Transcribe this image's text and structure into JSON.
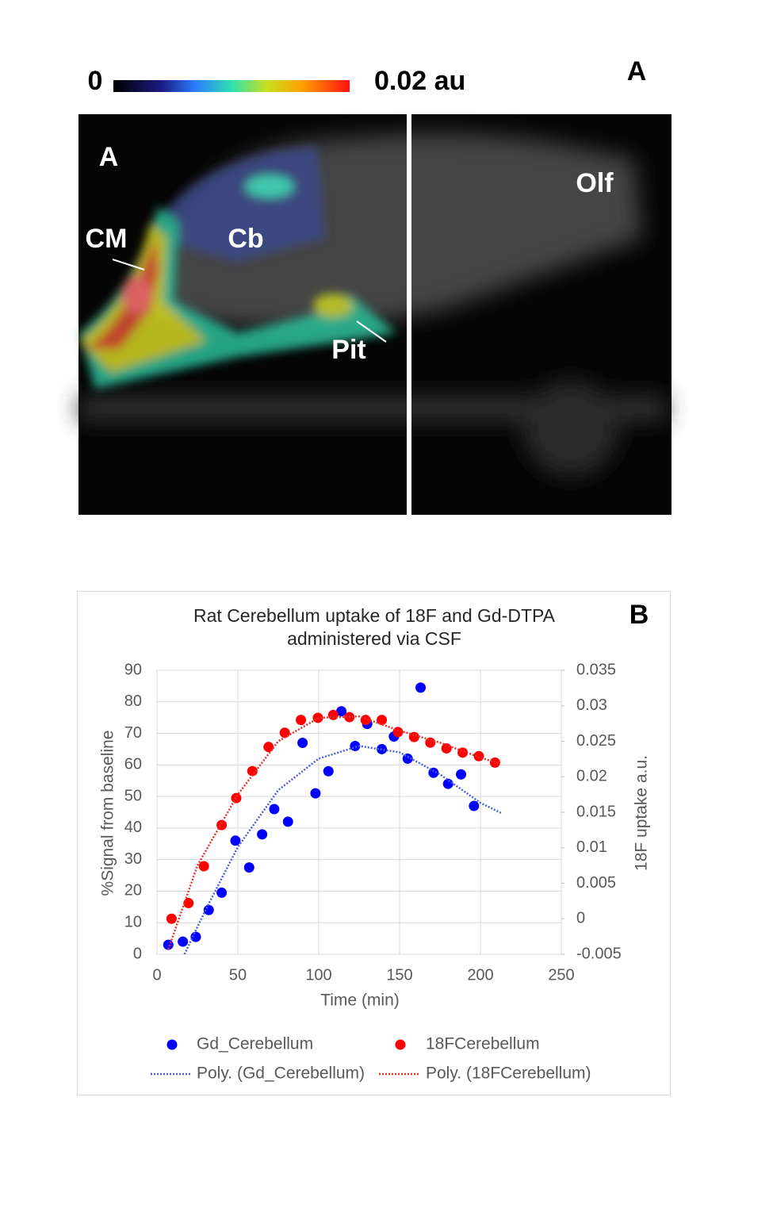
{
  "panel_a": {
    "label": "A",
    "colorbar": {
      "min_label": "0",
      "max_label": "0.02 au"
    },
    "image_labels": [
      "A",
      "CM",
      "Cb",
      "Pit",
      "Olf"
    ]
  },
  "chart_data": {
    "type": "scatter",
    "panel_label": "B",
    "title": "Rat Cerebellum uptake of 18F and Gd-DTPA administered via CSF",
    "x_label": "Time (min)",
    "y_label": "%Signal from baseline",
    "y2_label": "18F uptake a.u.",
    "xlim": [
      0,
      250
    ],
    "xticks": [
      0,
      50,
      100,
      150,
      200,
      250
    ],
    "ylim": [
      0,
      90
    ],
    "yticks": [
      0,
      10,
      20,
      30,
      40,
      50,
      60,
      70,
      80,
      90
    ],
    "y2lim": [
      -0.005,
      0.035
    ],
    "y2ticks": [
      -0.005,
      0,
      0.005,
      0.01,
      0.015,
      0.02,
      0.025,
      0.03,
      0.035
    ],
    "grid": true,
    "series": [
      {
        "name": "Gd_Cerebellum",
        "type": "scatter",
        "color": "#0000ff",
        "x": [
          7,
          16,
          24,
          32,
          40,
          48.5,
          57,
          65,
          72.5,
          81,
          90,
          98,
          106,
          114,
          122.5,
          130,
          139,
          146.5,
          155,
          163,
          171,
          180,
          188,
          196
        ],
        "values": [
          3,
          4,
          5.5,
          14,
          19.5,
          36,
          27.5,
          38,
          46,
          42,
          67,
          51,
          58,
          77,
          66,
          73,
          65,
          69,
          62,
          84.5,
          57.5,
          54,
          57,
          47
        ]
      },
      {
        "name": "18FCerebellum",
        "type": "scatter",
        "color": "#ff0000",
        "axis": "y2",
        "x": [
          9,
          19.5,
          29,
          40,
          49,
          59,
          69,
          79,
          89,
          99.5,
          109,
          119,
          129,
          139,
          149,
          159,
          169,
          179,
          189,
          199,
          209
        ],
        "values": [
          0,
          0.0022,
          0.0074,
          0.0132,
          0.017,
          0.0208,
          0.0242,
          0.0262,
          0.028,
          0.0283,
          0.0287,
          0.0284,
          0.028,
          0.028,
          0.0263,
          0.0256,
          0.0248,
          0.024,
          0.0234,
          0.0229,
          0.022
        ]
      },
      {
        "name": "Poly. (Gd_Cerebellum)",
        "type": "line",
        "color": "#4a5fe0",
        "dash": "dotted",
        "x": [
          17,
          30,
          50,
          75,
          100,
          125,
          150,
          175,
          200,
          213
        ],
        "values": [
          0,
          14,
          34,
          52,
          62,
          66,
          64,
          57,
          48,
          44.7
        ]
      },
      {
        "name": "Poly. (18FCerebellum)",
        "type": "line",
        "color": "#e83030",
        "dash": "dotted",
        "axis": "y2",
        "x": [
          7,
          25,
          50,
          75,
          100,
          125,
          150,
          175,
          200,
          211
        ],
        "values": [
          -0.0043,
          0.0075,
          0.0175,
          0.025,
          0.0283,
          0.0285,
          0.0265,
          0.0248,
          0.0227,
          0.0219
        ]
      }
    ]
  }
}
